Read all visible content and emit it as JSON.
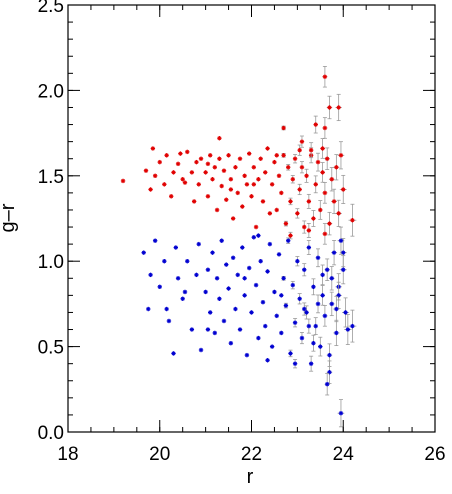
{
  "chart_data": {
    "type": "scatter",
    "xlabel": "r",
    "ylabel": "g–r",
    "xlim": [
      18,
      26
    ],
    "ylim": [
      0,
      2.5
    ],
    "x_ticks": [
      "18",
      "20",
      "22",
      "24",
      "26"
    ],
    "y_ticks": [
      "0.0",
      "0.5",
      "1.0",
      "1.5",
      "2.0",
      "2.5"
    ],
    "grid": false,
    "legend": "none",
    "series": [
      {
        "color": "#e00000",
        "points": [
          [
            19.2,
            1.47
          ],
          [
            19.7,
            1.53
          ],
          [
            19.8,
            1.42
          ],
          [
            19.85,
            1.66
          ],
          [
            19.9,
            1.5
          ],
          [
            20.0,
            1.58
          ],
          [
            20.1,
            1.45
          ],
          [
            20.15,
            1.62
          ],
          [
            20.25,
            1.38
          ],
          [
            20.3,
            1.52
          ],
          [
            20.4,
            1.57
          ],
          [
            20.45,
            1.63
          ],
          [
            20.5,
            1.48
          ],
          [
            20.6,
            1.64
          ],
          [
            20.7,
            1.52
          ],
          [
            20.75,
            1.35
          ],
          [
            20.8,
            1.58
          ],
          [
            20.85,
            1.45
          ],
          [
            20.9,
            1.6
          ],
          [
            21.0,
            1.52
          ],
          [
            21.05,
            1.38
          ],
          [
            21.1,
            1.62
          ],
          [
            21.15,
            1.48
          ],
          [
            21.2,
            1.55
          ],
          [
            21.25,
            1.3
          ],
          [
            21.3,
            1.6
          ],
          [
            21.35,
            1.44
          ],
          [
            21.4,
            1.53
          ],
          [
            21.45,
            1.36
          ],
          [
            21.5,
            1.62
          ],
          [
            21.55,
            1.48
          ],
          [
            21.6,
            1.25
          ],
          [
            21.65,
            1.55
          ],
          [
            21.7,
            1.4
          ],
          [
            21.75,
            1.6
          ],
          [
            21.8,
            1.32
          ],
          [
            21.85,
            1.5
          ],
          [
            21.9,
            1.45
          ],
          [
            21.95,
            1.63
          ],
          [
            22.0,
            1.38
          ],
          [
            22.05,
            1.55
          ],
          [
            22.1,
            1.2
          ],
          [
            22.15,
            1.48
          ],
          [
            22.2,
            1.6
          ],
          [
            22.25,
            1.35
          ],
          [
            22.3,
            1.52
          ],
          [
            22.35,
            1.66
          ],
          [
            22.4,
            1.28
          ],
          [
            22.45,
            1.45
          ],
          [
            22.5,
            1.58
          ],
          [
            22.55,
            1.3
          ],
          [
            22.6,
            1.5
          ],
          [
            22.65,
            1.4
          ],
          [
            22.7,
            1.62
          ],
          [
            22.75,
            1.22
          ],
          [
            22.8,
            1.55
          ],
          [
            22.85,
            1.35
          ],
          [
            22.9,
            1.48
          ],
          [
            22.95,
            1.6
          ],
          [
            23.0,
            1.28
          ],
          [
            23.05,
            1.42
          ],
          [
            23.1,
            1.55
          ],
          [
            23.15,
            1.2
          ],
          [
            23.2,
            1.5
          ],
          [
            23.25,
            1.35
          ],
          [
            23.3,
            1.62
          ],
          [
            23.35,
            1.25
          ],
          [
            23.4,
            1.45
          ],
          [
            23.45,
            1.58
          ],
          [
            23.5,
            1.3
          ],
          [
            23.55,
            1.52
          ],
          [
            23.6,
            1.4
          ],
          [
            23.65,
            1.6
          ],
          [
            23.7,
            1.22
          ],
          [
            23.75,
            1.48
          ],
          [
            23.8,
            1.35
          ],
          [
            23.85,
            1.55
          ],
          [
            23.9,
            1.28
          ],
          [
            24.0,
            1.42
          ],
          [
            24.2,
            1.24
          ],
          [
            22.7,
            1.78
          ],
          [
            23.4,
            1.8
          ],
          [
            23.7,
            1.9
          ],
          [
            23.9,
            1.9
          ],
          [
            23.6,
            2.08
          ],
          [
            23.6,
            1.78
          ],
          [
            23.1,
            1.7
          ],
          [
            23.3,
            1.65
          ],
          [
            21.3,
            1.72
          ],
          [
            23.95,
            1.62
          ],
          [
            20.55,
            1.46
          ],
          [
            21.05,
            1.57
          ],
          [
            21.55,
            1.42
          ],
          [
            22.05,
            1.45
          ],
          [
            22.55,
            1.62
          ],
          [
            23.05,
            1.65
          ],
          [
            23.55,
            1.66
          ],
          [
            23.25,
            1.18
          ],
          [
            22.85,
            1.15
          ],
          [
            23.6,
            1.16
          ]
        ]
      },
      {
        "color": "#0000d0",
        "points": [
          [
            19.65,
            1.05
          ],
          [
            19.75,
            0.72
          ],
          [
            19.8,
            0.92
          ],
          [
            19.9,
            1.12
          ],
          [
            20.0,
            0.85
          ],
          [
            20.1,
            1.0
          ],
          [
            20.2,
            0.65
          ],
          [
            20.3,
            0.46
          ],
          [
            20.35,
            1.08
          ],
          [
            20.4,
            0.9
          ],
          [
            20.5,
            0.78
          ],
          [
            20.6,
            1.0
          ],
          [
            20.7,
            0.6
          ],
          [
            20.8,
            0.92
          ],
          [
            20.85,
            1.1
          ],
          [
            20.9,
            0.48
          ],
          [
            21.0,
            0.82
          ],
          [
            21.05,
            0.95
          ],
          [
            21.1,
            0.7
          ],
          [
            21.15,
            1.05
          ],
          [
            21.2,
            0.58
          ],
          [
            21.25,
            0.9
          ],
          [
            21.3,
            0.78
          ],
          [
            21.35,
            1.12
          ],
          [
            21.4,
            0.65
          ],
          [
            21.45,
            0.98
          ],
          [
            21.5,
            0.84
          ],
          [
            21.55,
            0.52
          ],
          [
            21.6,
            1.02
          ],
          [
            21.65,
            0.72
          ],
          [
            21.7,
            0.92
          ],
          [
            21.75,
            0.6
          ],
          [
            21.8,
            1.08
          ],
          [
            21.85,
            0.8
          ],
          [
            21.9,
            0.45
          ],
          [
            21.95,
            0.96
          ],
          [
            22.0,
            0.7
          ],
          [
            22.05,
            1.14
          ],
          [
            22.1,
            0.86
          ],
          [
            22.15,
            0.55
          ],
          [
            22.2,
            1.0
          ],
          [
            22.25,
            0.76
          ],
          [
            22.3,
            0.62
          ],
          [
            22.35,
            0.94
          ],
          [
            22.4,
            1.1
          ],
          [
            22.45,
            0.5
          ],
          [
            22.5,
            0.82
          ],
          [
            22.55,
            0.68
          ],
          [
            22.6,
            1.04
          ],
          [
            22.65,
            0.58
          ],
          [
            22.7,
            0.9
          ],
          [
            22.75,
            0.74
          ],
          [
            22.8,
            1.12
          ],
          [
            22.85,
            0.46
          ],
          [
            22.9,
            0.86
          ],
          [
            22.95,
            0.64
          ],
          [
            23.0,
            1.0
          ],
          [
            23.05,
            0.78
          ],
          [
            23.1,
            0.55
          ],
          [
            23.15,
            0.95
          ],
          [
            23.2,
            0.7
          ],
          [
            23.25,
            1.08
          ],
          [
            23.3,
            0.4
          ],
          [
            23.35,
            0.85
          ],
          [
            23.4,
            0.62
          ],
          [
            23.45,
            1.02
          ],
          [
            23.5,
            0.5
          ],
          [
            23.55,
            0.8
          ],
          [
            23.6,
            0.68
          ],
          [
            23.65,
            0.95
          ],
          [
            23.7,
            0.45
          ],
          [
            23.75,
            0.75
          ],
          [
            23.8,
            1.05
          ],
          [
            23.85,
            0.58
          ],
          [
            23.9,
            0.85
          ],
          [
            24.0,
            0.95
          ],
          [
            24.1,
            0.6
          ],
          [
            24.2,
            0.62
          ],
          [
            23.9,
            0.8
          ],
          [
            23.7,
            0.35
          ],
          [
            23.65,
            0.28
          ],
          [
            23.95,
            0.11
          ],
          [
            20.55,
            0.82
          ],
          [
            21.85,
            0.9
          ],
          [
            22.65,
            0.8
          ],
          [
            23.15,
            0.72
          ],
          [
            23.45,
            0.75
          ],
          [
            23.55,
            0.92
          ],
          [
            23.75,
            0.9
          ],
          [
            24.0,
            1.05
          ],
          [
            22.35,
            0.42
          ],
          [
            22.95,
            0.4
          ],
          [
            23.35,
            0.52
          ],
          [
            23.85,
            0.72
          ],
          [
            23.95,
            1.12
          ],
          [
            24.05,
            0.7
          ],
          [
            22.15,
            1.15
          ],
          [
            21.05,
            0.6
          ],
          [
            20.15,
            0.72
          ],
          [
            23.25,
            0.62
          ]
        ]
      }
    ]
  }
}
